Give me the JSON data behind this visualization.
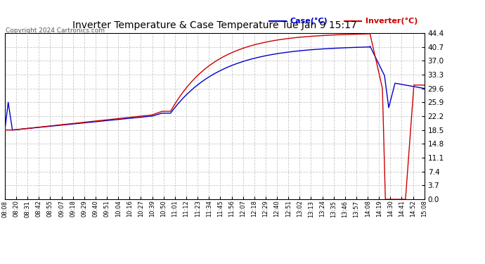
{
  "title": "Inverter Temperature & Case Temperature Tue Jan 9 15:17",
  "copyright": "Copyright 2024 Cartronics.com",
  "legend_case": "Case(°C)",
  "legend_inverter": "Inverter(°C)",
  "ylim": [
    0.0,
    44.4
  ],
  "yticks": [
    0.0,
    3.7,
    7.4,
    11.1,
    14.8,
    18.5,
    22.2,
    25.9,
    29.6,
    33.3,
    37.0,
    40.7,
    44.4
  ],
  "background_color": "#ffffff",
  "plot_bg_color": "#ffffff",
  "grid_color": "#bbbbbb",
  "case_color": "#0000cc",
  "inverter_color": "#cc0000",
  "x_labels": [
    "08:08",
    "08:20",
    "08:31",
    "08:42",
    "08:55",
    "09:07",
    "09:18",
    "09:29",
    "09:40",
    "09:51",
    "10:04",
    "10:16",
    "10:27",
    "10:39",
    "10:50",
    "11:01",
    "11:12",
    "11:23",
    "11:34",
    "11:45",
    "11:56",
    "12:07",
    "12:18",
    "12:29",
    "12:40",
    "12:51",
    "13:02",
    "13:13",
    "13:24",
    "13:35",
    "13:46",
    "13:57",
    "14:08",
    "14:19",
    "14:30",
    "14:41",
    "14:52",
    "15:08"
  ]
}
